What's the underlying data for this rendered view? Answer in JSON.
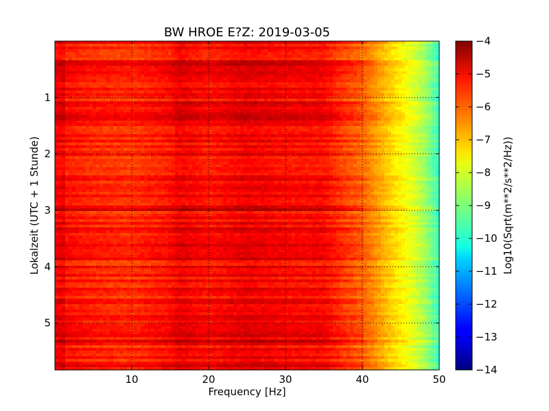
{
  "chart_data": {
    "type": "heatmap",
    "title": "BW HROE E?Z: 2019-03-05",
    "xlabel": "Frequency [Hz]",
    "ylabel": "Lokalzeit (UTC + 1 Stunde)",
    "xlim": [
      0,
      50
    ],
    "ylim": [
      5.83,
      0
    ],
    "x_ticks": [
      10,
      20,
      30,
      40,
      50
    ],
    "y_ticks": [
      1,
      2,
      3,
      4,
      5
    ],
    "grid": true,
    "colorbar": {
      "label": "Log10(Sqrt(m**2/s**2/Hz))",
      "range": [
        -14,
        -4
      ],
      "ticks": [
        -4,
        -5,
        -6,
        -7,
        -8,
        -9,
        -10,
        -11,
        -12,
        -13,
        -14
      ],
      "colormap": "jet"
    },
    "spectrum_profile": {
      "description_values": "typical log10 amplitude vs frequency",
      "frequency": [
        0,
        2,
        5,
        10,
        15,
        16,
        20,
        25,
        30,
        35,
        38,
        40,
        42,
        44,
        46,
        48,
        50
      ],
      "value": [
        -5.6,
        -5.4,
        -5.6,
        -5.7,
        -5.4,
        -5.1,
        -5.4,
        -5.1,
        -5.3,
        -5.3,
        -5.9,
        -6.2,
        -6.8,
        -7.4,
        -7.9,
        -8.6,
        -9.7
      ]
    }
  }
}
